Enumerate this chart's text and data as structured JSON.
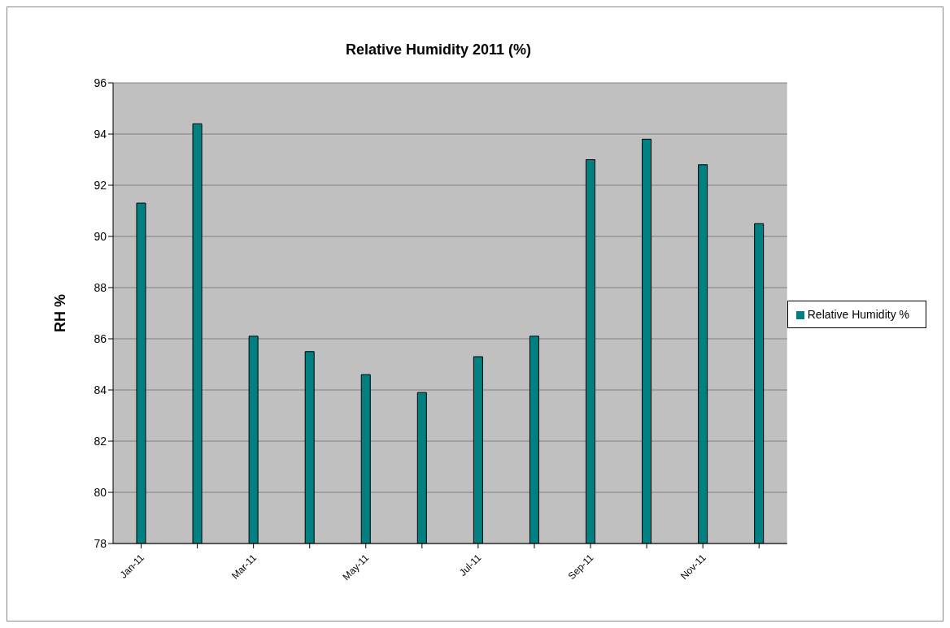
{
  "chart_data": {
    "type": "bar",
    "title": "Relative Humidity 2011 (%)",
    "ylabel": "RH %",
    "categories": [
      "Jan-11",
      null,
      "Mar-11",
      null,
      "May-11",
      null,
      "Jul-11",
      null,
      "Sep-11",
      null,
      "Nov-11",
      null
    ],
    "series": [
      {
        "name": "Relative Humidity %",
        "color": "#008080",
        "values": [
          91.3,
          94.4,
          86.1,
          85.5,
          84.6,
          83.9,
          85.3,
          86.1,
          93.0,
          93.8,
          92.8,
          90.5
        ]
      }
    ],
    "ylim": [
      78,
      96
    ],
    "yticks": [
      78,
      80,
      82,
      84,
      86,
      88,
      90,
      92,
      94,
      96
    ],
    "grid": "y",
    "legend": "right"
  }
}
